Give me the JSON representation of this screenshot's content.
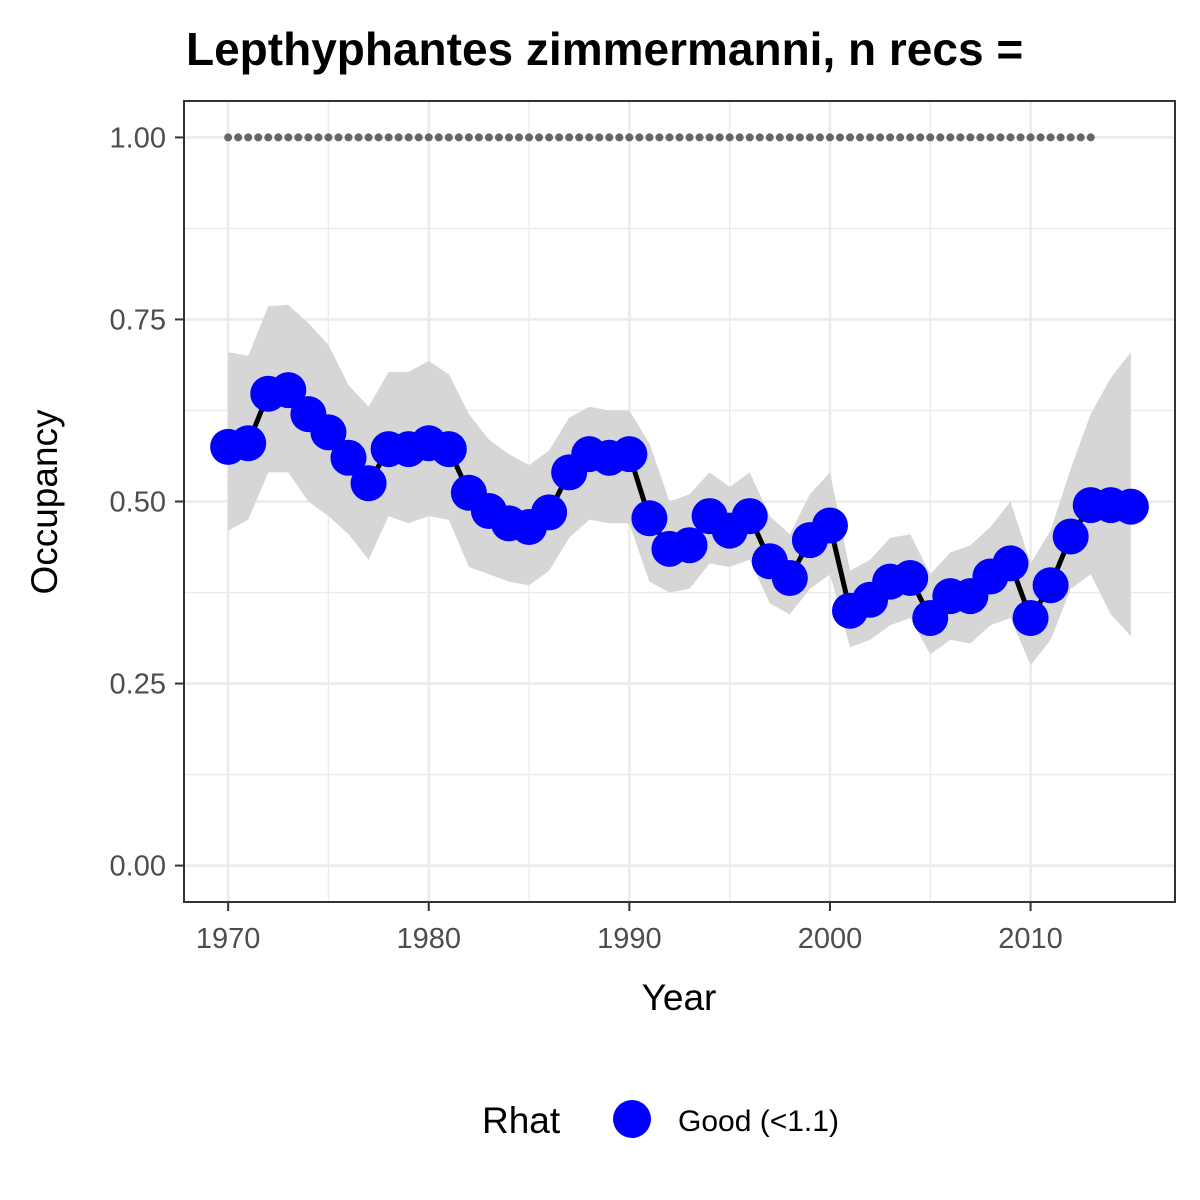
{
  "chart_data": {
    "type": "line",
    "title": "Lepthyphantes zimmermanni, n recs =",
    "xlabel": "Year",
    "ylabel": "Occupancy",
    "xlim": [
      1967.8,
      2017.2
    ],
    "ylim": [
      -0.05,
      1.05
    ],
    "x_ticks": [
      1970,
      1980,
      1990,
      2000,
      2010
    ],
    "x_tick_labels": [
      "1970",
      "1980",
      "1990",
      "2000",
      "2010"
    ],
    "y_ticks": [
      0,
      0.25,
      0.5,
      0.75,
      1.0
    ],
    "y_tick_labels": [
      "0.00",
      "0.25",
      "0.50",
      "0.75",
      "1.00"
    ],
    "grid": true,
    "years": [
      1970,
      1971,
      1972,
      1973,
      1974,
      1975,
      1976,
      1977,
      1978,
      1979,
      1980,
      1981,
      1982,
      1983,
      1984,
      1985,
      1986,
      1987,
      1988,
      1989,
      1990,
      1991,
      1992,
      1993,
      1994,
      1995,
      1996,
      1997,
      1998,
      1999,
      2000,
      2001,
      2002,
      2003,
      2004,
      2005,
      2006,
      2007,
      2008,
      2009,
      2010,
      2011,
      2012,
      2013,
      2014,
      2015
    ],
    "series": [
      {
        "name": "Occupancy",
        "values": [
          0.575,
          0.58,
          0.648,
          0.653,
          0.62,
          0.595,
          0.56,
          0.525,
          0.572,
          0.572,
          0.58,
          0.572,
          0.512,
          0.487,
          0.47,
          0.465,
          0.485,
          0.54,
          0.565,
          0.56,
          0.565,
          0.477,
          0.435,
          0.44,
          0.48,
          0.46,
          0.48,
          0.418,
          0.395,
          0.447,
          0.467,
          0.35,
          0.365,
          0.39,
          0.395,
          0.34,
          0.37,
          0.37,
          0.397,
          0.415,
          0.34,
          0.385,
          0.452,
          0.495,
          0.495,
          0.493
        ],
        "lower": [
          0.46,
          0.475,
          0.54,
          0.54,
          0.5,
          0.48,
          0.455,
          0.42,
          0.48,
          0.47,
          0.48,
          0.475,
          0.41,
          0.4,
          0.39,
          0.385,
          0.405,
          0.45,
          0.475,
          0.47,
          0.47,
          0.39,
          0.375,
          0.38,
          0.415,
          0.41,
          0.42,
          0.36,
          0.345,
          0.38,
          0.4,
          0.3,
          0.31,
          0.33,
          0.34,
          0.29,
          0.31,
          0.305,
          0.33,
          0.34,
          0.275,
          0.31,
          0.38,
          0.4,
          0.345,
          0.315
        ],
        "upper": [
          0.705,
          0.7,
          0.768,
          0.77,
          0.745,
          0.715,
          0.66,
          0.63,
          0.678,
          0.678,
          0.693,
          0.675,
          0.62,
          0.585,
          0.565,
          0.55,
          0.57,
          0.615,
          0.63,
          0.625,
          0.625,
          0.58,
          0.5,
          0.51,
          0.54,
          0.52,
          0.54,
          0.48,
          0.455,
          0.51,
          0.54,
          0.405,
          0.42,
          0.45,
          0.455,
          0.4,
          0.43,
          0.44,
          0.465,
          0.5,
          0.415,
          0.46,
          0.545,
          0.62,
          0.67,
          0.705
        ]
      },
      {
        "name": "Reference",
        "x": [
          1970,
          1971,
          1972,
          1973,
          1974,
          1975,
          1976,
          1977,
          1978,
          1979,
          1980,
          1981,
          1982,
          1983,
          1984,
          1985,
          1986,
          1987,
          1988,
          1989,
          1990,
          1991,
          1992,
          1993,
          1994,
          1995,
          1996,
          1997,
          1998,
          1999,
          2000,
          2001,
          2002,
          2003,
          2004,
          2005,
          2006,
          2007,
          2008,
          2009,
          2010,
          2011,
          2012,
          2013
        ],
        "value": 1.0
      }
    ],
    "legend": {
      "position": "bottom",
      "title": "Rhat",
      "label": "Good (<1.1)"
    }
  },
  "colors": {
    "points": "#0000ff",
    "line": "#000000",
    "ribbon": "#d6d6d6",
    "reference": "#666666",
    "grid": "#ebebeb",
    "border": "#333333"
  }
}
